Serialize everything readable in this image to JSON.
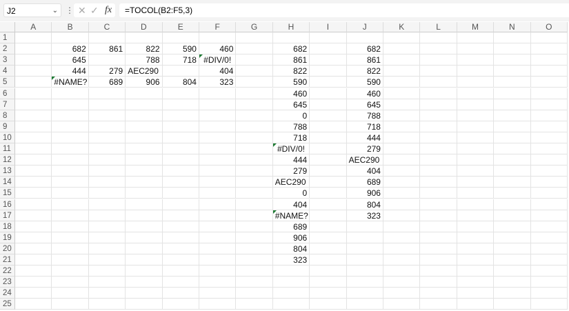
{
  "formula_bar": {
    "name_box": "J2",
    "formula": "=TOCOL(B2:F5,3)",
    "fx_label": "fx"
  },
  "columns": [
    "A",
    "B",
    "C",
    "D",
    "E",
    "F",
    "G",
    "H",
    "I",
    "J",
    "K",
    "L",
    "M",
    "N",
    "O"
  ],
  "row_count": 25,
  "colors": {
    "error_indicator": "#1e7b34"
  },
  "cells": {
    "B2": "682",
    "C2": "861",
    "D2": "822",
    "E2": "590",
    "F2": "460",
    "B3": "645",
    "D3": "788",
    "E3": "718",
    "F3": "#DIV/0!",
    "B4": "444",
    "C4": "279",
    "D4": "AEC290",
    "F4": "404",
    "B5": "#NAME?",
    "C5": "689",
    "D5": "906",
    "E5": "804",
    "F5": "323",
    "H2": "682",
    "H3": "861",
    "H4": "822",
    "H5": "590",
    "H6": "460",
    "H7": "645",
    "H8": "0",
    "H9": "788",
    "H10": "718",
    "H11": "#DIV/0!",
    "H12": "444",
    "H13": "279",
    "H14": "AEC290",
    "H15": "0",
    "H16": "404",
    "H17": "#NAME?",
    "H18": "689",
    "H19": "906",
    "H20": "804",
    "H21": "323",
    "J2": "682",
    "J3": "861",
    "J4": "822",
    "J5": "590",
    "J6": "460",
    "J7": "645",
    "J8": "788",
    "J9": "718",
    "J10": "444",
    "J11": "279",
    "J12": "AEC290",
    "J13": "404",
    "J14": "689",
    "J15": "906",
    "J16": "804",
    "J17": "323"
  }
}
